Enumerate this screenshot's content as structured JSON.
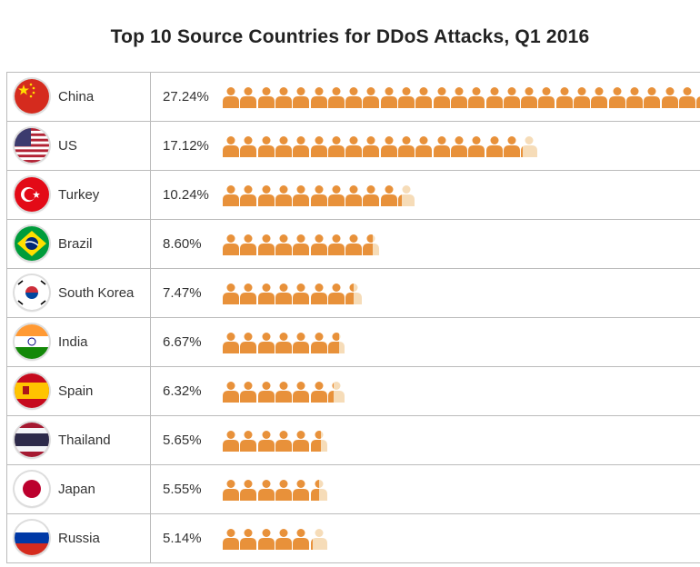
{
  "chart_data": {
    "type": "pictogram",
    "title": "Top 10 Source Countries for DDoS Attacks, Q1 2016",
    "unit_per_icon": 1,
    "icon": "person-icon",
    "colors": {
      "icon": "#e8913a",
      "icon_faded": "#f6dcb8"
    },
    "rows": [
      {
        "country": "China",
        "label": "27.24%",
        "value": 27.24,
        "flag": "china"
      },
      {
        "country": "US",
        "label": "17.12%",
        "value": 17.12,
        "flag": "us"
      },
      {
        "country": "Turkey",
        "label": "10.24%",
        "value": 10.24,
        "flag": "turkey"
      },
      {
        "country": "Brazil",
        "label": "8.60%",
        "value": 8.6,
        "flag": "brazil"
      },
      {
        "country": "South Korea",
        "label": "7.47%",
        "value": 7.47,
        "flag": "south-korea"
      },
      {
        "country": "India",
        "label": "6.67%",
        "value": 6.67,
        "flag": "india"
      },
      {
        "country": "Spain",
        "label": "6.32%",
        "value": 6.32,
        "flag": "spain"
      },
      {
        "country": "Thailand",
        "label": "5.65%",
        "value": 5.65,
        "flag": "thailand"
      },
      {
        "country": "Japan",
        "label": "5.55%",
        "value": 5.55,
        "flag": "japan"
      },
      {
        "country": "Russia",
        "label": "5.14%",
        "value": 5.14,
        "flag": "russia"
      }
    ]
  }
}
